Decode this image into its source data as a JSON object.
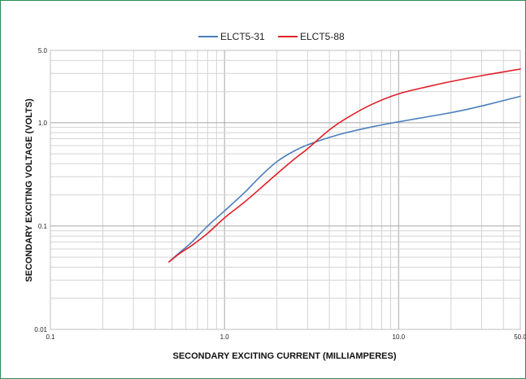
{
  "chart_data": {
    "type": "line",
    "title": "",
    "xlabel": "SECONDARY EXCITING CURRENT (MILLIAMPERES)",
    "ylabel": "SECONDARY EXCITING VOLTAGE (VOLTS)",
    "xscale": "log",
    "yscale": "log",
    "xlim": [
      0.1,
      50.0
    ],
    "ylim": [
      0.01,
      5.0
    ],
    "x_ticks": [
      0.1,
      1.0,
      10.0,
      50.0
    ],
    "x_tick_labels": [
      "0.1",
      "1.0",
      "10.0",
      "50.0"
    ],
    "y_ticks": [
      0.01,
      0.1,
      1.0,
      5.0
    ],
    "y_tick_labels": [
      "0.01",
      "0.1",
      "1.0",
      "5.0"
    ],
    "grid": true,
    "legend_position": "top-center",
    "series": [
      {
        "name": "ELCT5-31",
        "color": "#4a7ebb",
        "x": [
          0.48,
          0.55,
          0.65,
          0.8,
          1.0,
          1.3,
          1.6,
          2.0,
          2.5,
          3.0,
          4.0,
          5.0,
          7.0,
          10.0,
          20.0,
          30.0,
          50.0
        ],
        "y": [
          0.045,
          0.055,
          0.07,
          0.1,
          0.14,
          0.21,
          0.3,
          0.42,
          0.53,
          0.61,
          0.72,
          0.8,
          0.91,
          1.02,
          1.25,
          1.45,
          1.8
        ]
      },
      {
        "name": "ELCT5-88",
        "color": "#e0202a",
        "x": [
          0.48,
          0.55,
          0.65,
          0.8,
          1.0,
          1.3,
          1.6,
          2.0,
          2.5,
          3.0,
          4.0,
          5.0,
          7.0,
          10.0,
          15.0,
          20.0,
          30.0,
          50.0
        ],
        "y": [
          0.045,
          0.054,
          0.065,
          0.085,
          0.12,
          0.17,
          0.23,
          0.32,
          0.44,
          0.56,
          0.85,
          1.1,
          1.5,
          1.9,
          2.25,
          2.5,
          2.85,
          3.3
        ]
      }
    ]
  }
}
